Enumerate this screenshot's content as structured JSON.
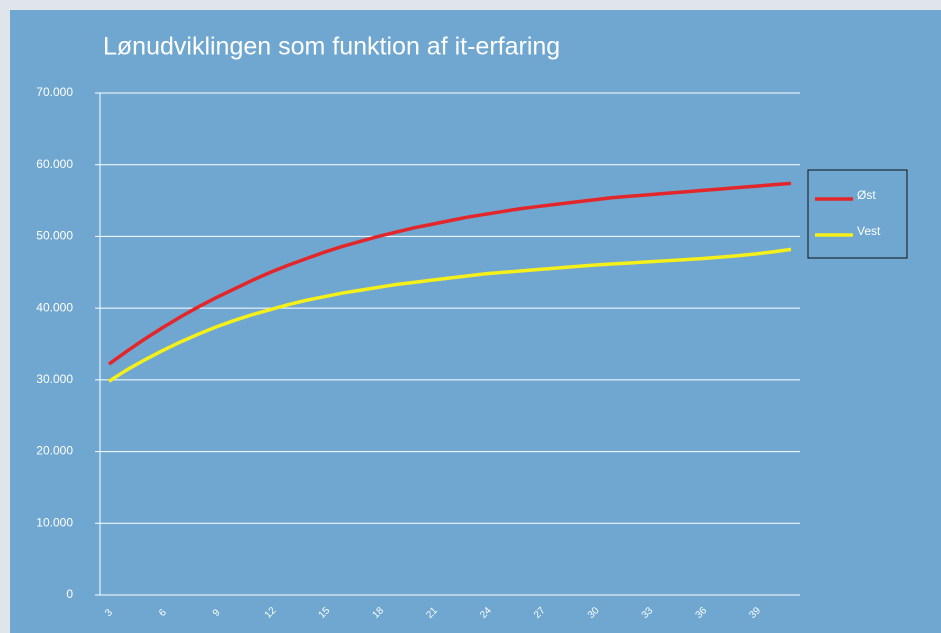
{
  "chart_data": {
    "type": "line",
    "title": "Lønudviklingen som funktion af it-erfaring",
    "categories": [
      3,
      null,
      null,
      6,
      null,
      null,
      9,
      null,
      null,
      12,
      null,
      null,
      15,
      null,
      null,
      18,
      null,
      null,
      21,
      null,
      null,
      24,
      null,
      null,
      27,
      null,
      null,
      30,
      null,
      null,
      33,
      null,
      null,
      36,
      null,
      null,
      39,
      null,
      null
    ],
    "series": [
      {
        "name": "Øst",
        "color": "#e3262a",
        "values": [
          32200,
          34000,
          35700,
          37300,
          38800,
          40200,
          41500,
          42700,
          43900,
          45000,
          46000,
          46900,
          47800,
          48600,
          49300,
          50000,
          50600,
          51200,
          51700,
          52200,
          52700,
          53100,
          53500,
          53900,
          54200,
          54500,
          54800,
          55100,
          55400,
          55600,
          55800,
          56000,
          56200,
          56400,
          56600,
          56800,
          57000,
          57200,
          57400
        ]
      },
      {
        "name": "Vest",
        "color": "#f5ef1a",
        "values": [
          29800,
          31400,
          32800,
          34100,
          35300,
          36400,
          37400,
          38300,
          39100,
          39800,
          40500,
          41100,
          41600,
          42100,
          42500,
          42900,
          43300,
          43600,
          43900,
          44200,
          44500,
          44800,
          45000,
          45200,
          45400,
          45600,
          45800,
          46000,
          46150,
          46300,
          46450,
          46600,
          46750,
          46900,
          47100,
          47300,
          47550,
          47850,
          48200
        ]
      }
    ],
    "ylim": [
      0,
      70000
    ],
    "yticks": [
      0,
      {
        "value": 10000,
        "label": "10.000"
      },
      {
        "value": 20000,
        "label": "20.000"
      },
      {
        "value": 30000,
        "label": "30.000"
      },
      {
        "value": 40000,
        "label": "40.000"
      },
      {
        "value": 50000,
        "label": "50.000"
      },
      {
        "value": 60000,
        "label": "60.000"
      },
      {
        "value": 70000,
        "label": "70.000"
      }
    ],
    "grid": true,
    "legend": "right"
  }
}
